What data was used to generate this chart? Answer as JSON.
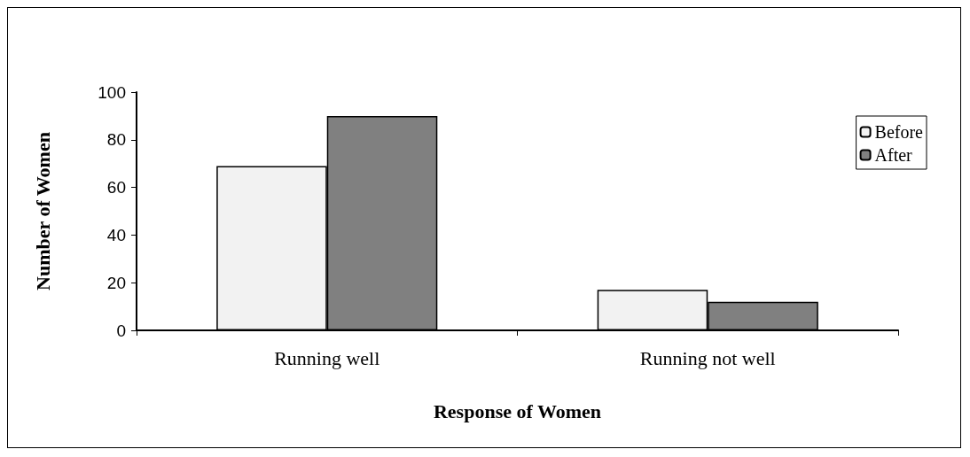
{
  "chart_data": {
    "type": "bar",
    "xlabel": "Response of Women",
    "ylabel": "Number of Women",
    "categories": [
      "Running well",
      "Running not well"
    ],
    "series": [
      {
        "name": "Before",
        "color": "#f2f2f2",
        "values": [
          69,
          17
        ]
      },
      {
        "name": "After",
        "color": "#808080",
        "values": [
          90,
          12
        ]
      }
    ],
    "ylim": [
      0,
      100
    ],
    "yticks": [
      0,
      20,
      40,
      60,
      80,
      100
    ],
    "grid": false,
    "legend": "top right"
  }
}
